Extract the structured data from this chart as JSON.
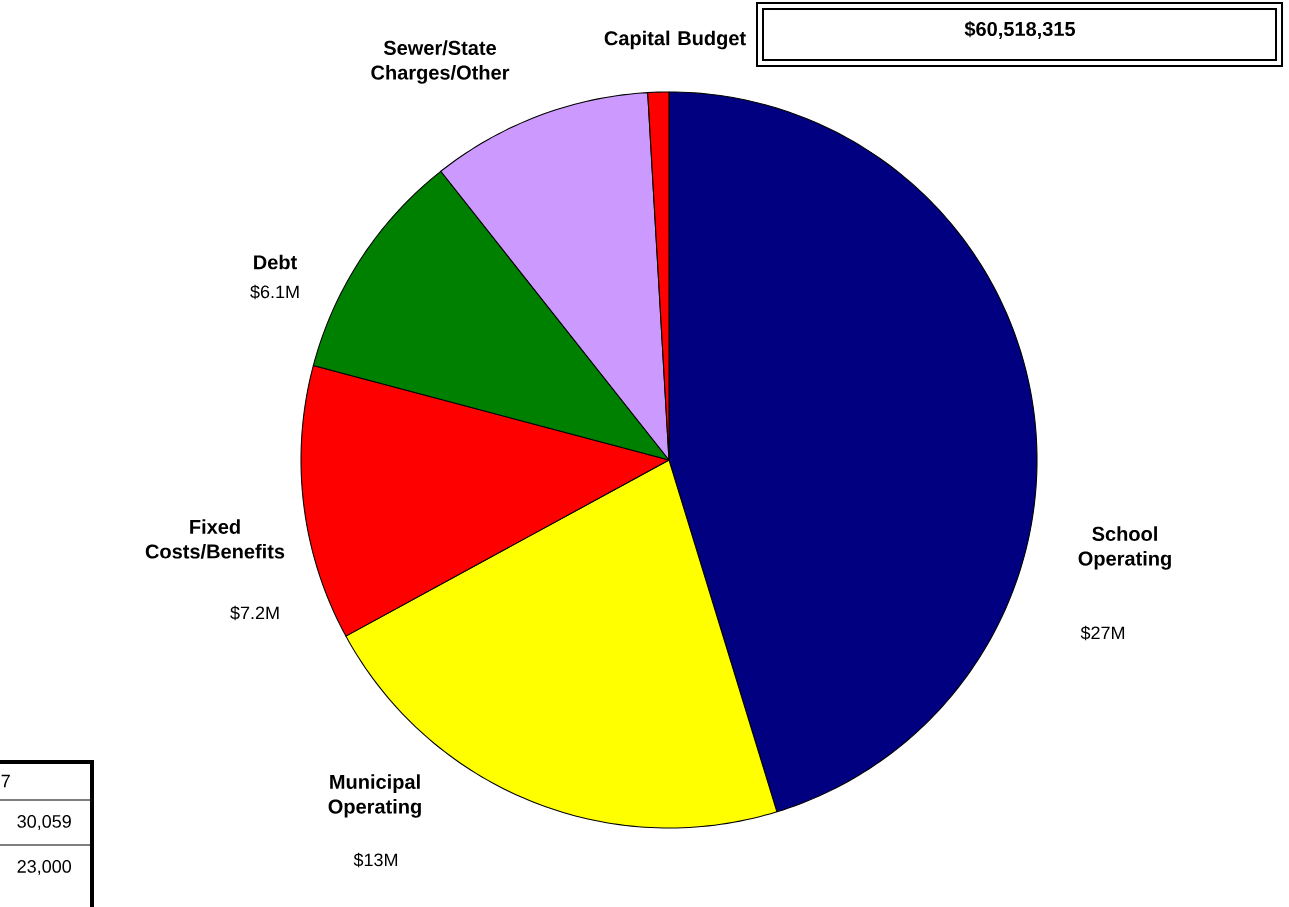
{
  "chart_data": {
    "type": "pie",
    "title": "$60,518,315",
    "categories": [
      "School Operating",
      "Municipal Operating",
      "Fixed Costs/Benefits",
      "Debt",
      "Sewer/State Charges/Other",
      "Capital Budget"
    ],
    "values": [
      27,
      13,
      7.2,
      6.1,
      5.8,
      0.55
    ],
    "value_labels": [
      "$27M",
      "$13M",
      "$7.2M",
      "$6.1M",
      null,
      null
    ],
    "colors": [
      "#000080",
      "#ffff00",
      "#ff0000",
      "#008000",
      "#cc99ff",
      "#ff0000"
    ],
    "annotations": [
      "7",
      "30,059",
      "23,000"
    ]
  }
}
